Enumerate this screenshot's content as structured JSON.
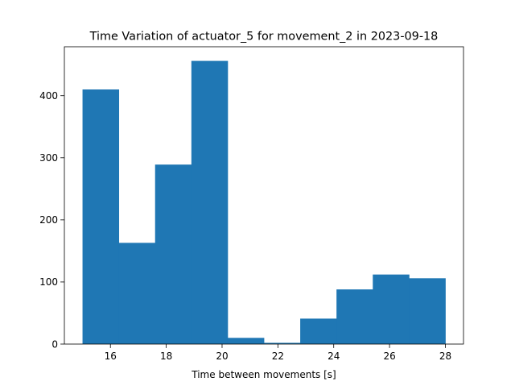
{
  "chart_data": {
    "type": "bar",
    "histogram": true,
    "title": "Time Variation of actuator_5 for movement_2 in 2023-09-18",
    "xlabel": "Time between movements [s]",
    "ylabel": "",
    "bin_edges": [
      15.0,
      16.3,
      17.6,
      18.9,
      20.2,
      21.5,
      22.8,
      24.1,
      25.4,
      26.7,
      28.0
    ],
    "values": [
      410,
      163,
      289,
      456,
      10,
      2,
      41,
      88,
      112,
      106
    ],
    "xlim": [
      14.35,
      28.65
    ],
    "ylim": [
      0,
      478.8
    ],
    "xticks": [
      16,
      18,
      20,
      22,
      24,
      26,
      28
    ],
    "yticks": [
      0,
      100,
      200,
      300,
      400
    ],
    "bar_color": "#1f77b4",
    "grid": false,
    "legend": "none"
  }
}
